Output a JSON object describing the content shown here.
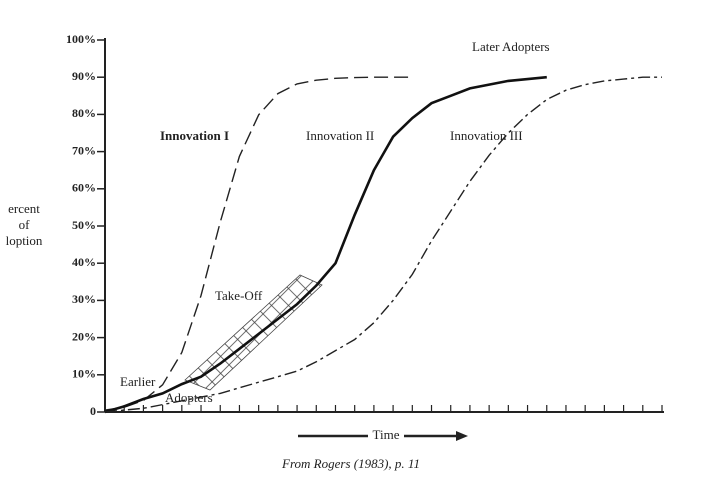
{
  "chart_data": {
    "type": "line",
    "ylabel": [
      "ercent",
      "of",
      "loption"
    ],
    "xlabel": "Time",
    "caption": "From Rogers (1983), p. 11",
    "annotations": [
      "Later Adopters",
      "Take-Off",
      "Earlier",
      "Adopters"
    ],
    "categories": [
      null,
      null,
      null,
      null,
      null,
      null,
      null,
      null,
      null,
      null,
      null,
      null,
      null,
      null,
      null,
      null,
      null,
      null,
      null,
      null,
      null,
      null,
      null,
      null,
      null,
      null,
      null,
      null,
      null,
      null
    ],
    "ylim": [
      0,
      100
    ],
    "yticks": [
      0,
      {
        "value": 10,
        "label": "10%"
      },
      {
        "value": 20,
        "label": "20%"
      },
      {
        "value": 30,
        "label": "30%"
      },
      {
        "value": 40,
        "label": "40%"
      },
      {
        "value": 50,
        "label": "50%"
      },
      {
        "value": 60,
        "label": "60%"
      },
      {
        "value": 70,
        "label": "70%"
      },
      {
        "value": 80,
        "label": "80%"
      },
      {
        "value": 90,
        "label": "90%"
      },
      {
        "value": 100,
        "label": "100%"
      }
    ],
    "grid": false,
    "series": [
      {
        "name": "Innovation I",
        "color": "#222222",
        "style": "dashed",
        "values": [
          0.5,
          1.3,
          3.1,
          7.3,
          16,
          31.3,
          51,
          68.7,
          79.9,
          85.6,
          88.2,
          89.2,
          89.7,
          89.9,
          90,
          90,
          90,
          null,
          null,
          null,
          null,
          null,
          null,
          null,
          null,
          null,
          null,
          null,
          null,
          null
        ]
      },
      {
        "name": "Innovation II",
        "color": "#111111",
        "style": "solid",
        "values": [
          0,
          1.5,
          3.5,
          5,
          7.5,
          9.5,
          13,
          17,
          21,
          25,
          29,
          34,
          40,
          53,
          65,
          74,
          79,
          83,
          85,
          87,
          88,
          89,
          89.5,
          90,
          null,
          null,
          null,
          null,
          null,
          null
        ]
      },
      {
        "name": "Innovation III",
        "color": "#222222",
        "style": "dashdot",
        "values": [
          0,
          0.5,
          1,
          2,
          3,
          4,
          5,
          6.5,
          8,
          9.5,
          11,
          13.5,
          16.5,
          19.5,
          24,
          30,
          37,
          46,
          54,
          62,
          69,
          75,
          80,
          84,
          86.5,
          88,
          89,
          89.5,
          90,
          90
        ]
      }
    ]
  }
}
